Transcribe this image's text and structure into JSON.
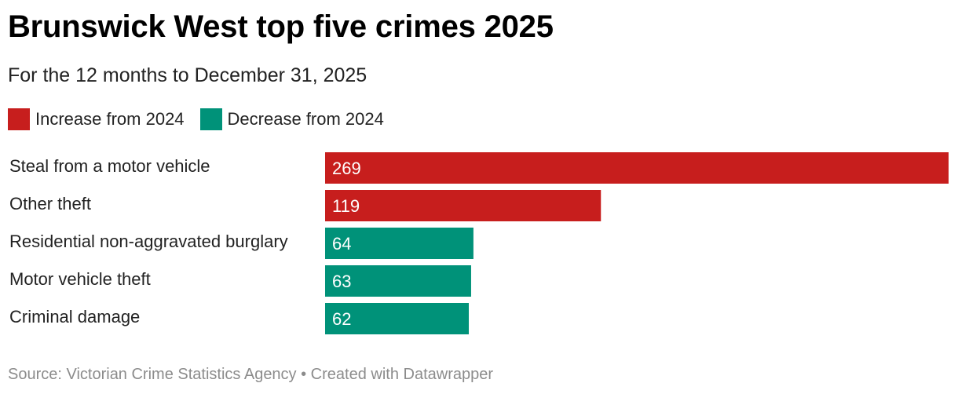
{
  "header": {
    "title": "Brunswick West top five crimes 2025",
    "subtitle": "For the 12 months to December 31, 2025"
  },
  "legend": [
    {
      "label": "Increase from 2024",
      "color": "#c71e1d"
    },
    {
      "label": "Decrease from 2024",
      "color": "#009279"
    }
  ],
  "chart_data": {
    "type": "bar",
    "orientation": "horizontal",
    "title": "Brunswick West top five crimes 2025",
    "subtitle": "For the 12 months to December 31, 2025",
    "categories": [
      "Steal from a motor vehicle",
      "Other theft",
      "Residential non-aggravated burglary",
      "Motor vehicle theft",
      "Criminal damage"
    ],
    "values": [
      269,
      119,
      64,
      63,
      62
    ],
    "bar_status": [
      "increase",
      "increase",
      "decrease",
      "decrease",
      "decrease"
    ],
    "colors": {
      "increase": "#c71e1d",
      "decrease": "#009279"
    },
    "xlim": [
      0,
      269
    ],
    "grid": false,
    "legend_position": "top-left",
    "data_labels": "inside-left"
  },
  "footer": {
    "source": "Source: Victorian Crime Statistics Agency • Created with Datawrapper"
  }
}
